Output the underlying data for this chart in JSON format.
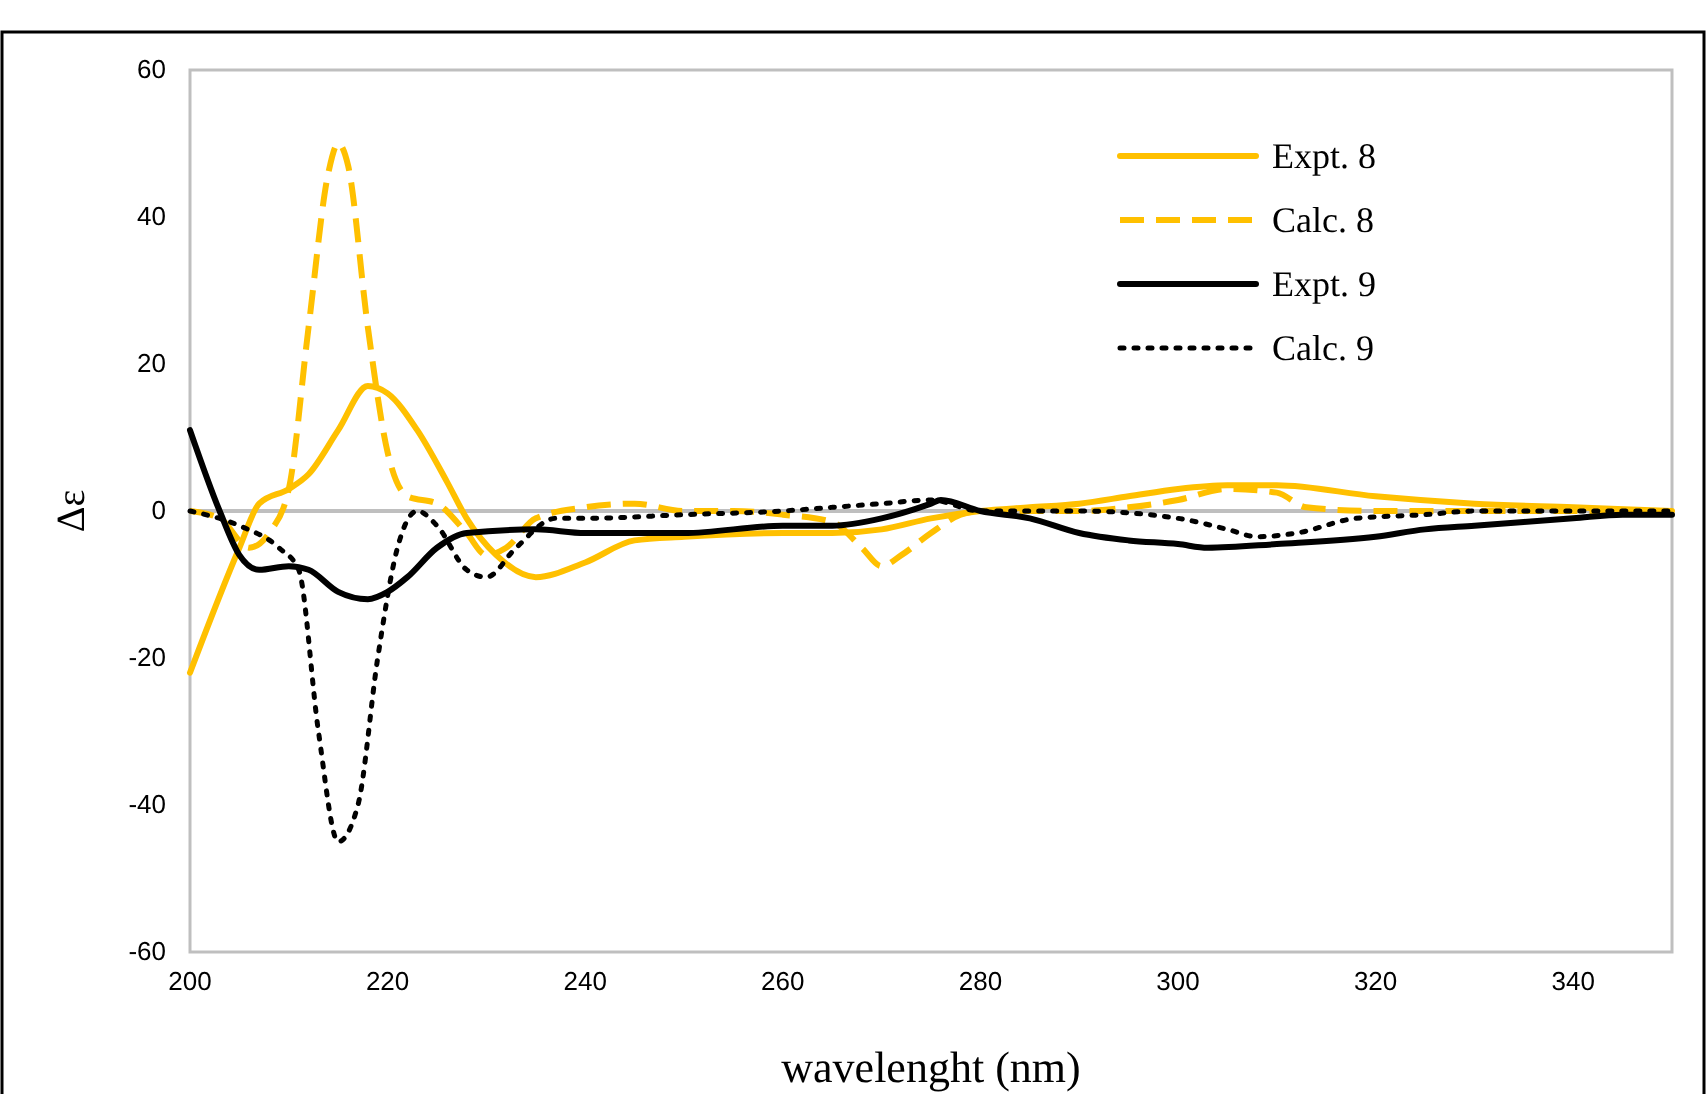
{
  "chart_data": {
    "type": "line",
    "xlabel": "wavelenght (nm)",
    "ylabel": "Δε",
    "xlim": [
      200,
      350
    ],
    "xticks": [
      200,
      220,
      240,
      260,
      280,
      300,
      320,
      340
    ],
    "ylim": [
      -60,
      60
    ],
    "yticks": [
      -60,
      -40,
      -20,
      0,
      20,
      40,
      60
    ],
    "grid": false,
    "legend": "top right",
    "marker": "none",
    "ref_lines": [
      {
        "axis": "y",
        "value": 0,
        "color": "#bfbfbf"
      }
    ],
    "series": [
      {
        "name": "Expt. 8",
        "color": "#ffc000",
        "line_style": "solid",
        "x": [
          200,
          205,
          207,
          210,
          212,
          215,
          218,
          220,
          223,
          226,
          228,
          231,
          235,
          240,
          245,
          250,
          260,
          265,
          270,
          275,
          280,
          285,
          290,
          295,
          300,
          305,
          310,
          320,
          330,
          340,
          350
        ],
        "values": [
          -22,
          -5,
          1,
          3,
          5,
          11,
          17,
          16,
          11,
          4,
          -1,
          -6,
          -9,
          -7,
          -4,
          -3.5,
          -3,
          -3,
          -2.5,
          -1,
          0,
          0.5,
          1,
          2,
          3,
          3.5,
          3.5,
          2,
          1,
          0.5,
          0
        ]
      },
      {
        "name": "Calc. 8",
        "color": "#ffc000",
        "line_style": "dashed",
        "x": [
          200,
          203,
          206,
          208,
          210,
          212,
          214,
          215,
          216,
          218,
          220,
          222,
          225,
          228,
          230,
          232,
          235,
          240,
          245,
          250,
          255,
          260,
          265,
          268,
          270,
          272,
          275,
          278,
          280,
          290,
          295,
          300,
          305,
          310,
          313,
          320,
          350
        ],
        "values": [
          0,
          -1,
          -5,
          -3,
          3,
          25,
          46,
          50,
          47,
          25,
          8,
          2,
          1,
          -3,
          -6,
          -5,
          -1,
          0.5,
          1,
          0,
          0,
          -0.5,
          -1.5,
          -5,
          -7.5,
          -6,
          -3,
          -0.5,
          0,
          0,
          0.5,
          1.5,
          3,
          2.5,
          0.5,
          0,
          0
        ]
      },
      {
        "name": "Expt. 9",
        "color": "#000000",
        "line_style": "solid",
        "x": [
          200,
          203,
          205,
          207,
          210,
          212,
          215,
          218,
          220,
          222,
          225,
          228,
          235,
          240,
          250,
          260,
          265,
          270,
          275,
          276,
          280,
          285,
          290,
          295,
          300,
          303,
          310,
          320,
          325,
          330,
          340,
          345,
          350
        ],
        "values": [
          11,
          0,
          -6,
          -8,
          -7.5,
          -8,
          -11,
          -12,
          -11,
          -9,
          -5,
          -3,
          -2.5,
          -3,
          -3,
          -2,
          -2,
          -1,
          1,
          1.5,
          0,
          -1,
          -3,
          -4,
          -4.5,
          -5,
          -4.5,
          -3.5,
          -2.5,
          -2,
          -1,
          -0.5,
          -0.5
        ]
      },
      {
        "name": "Calc. 9",
        "color": "#000000",
        "line_style": "dotted",
        "x": [
          200,
          205,
          209,
          211,
          213,
          215,
          217,
          219,
          221,
          223,
          225,
          228,
          230,
          233,
          237,
          240,
          250,
          260,
          265,
          270,
          275,
          280,
          290,
          300,
          305,
          308,
          312,
          318,
          325,
          330,
          350
        ],
        "values": [
          0,
          -2,
          -5,
          -8,
          -30,
          -45,
          -40,
          -20,
          -5,
          0,
          -2,
          -8,
          -9,
          -5,
          -1,
          -1,
          -0.5,
          0,
          0.5,
          1,
          1.5,
          0,
          0,
          -1,
          -2.5,
          -3.5,
          -3,
          -1,
          -0.5,
          0,
          0
        ]
      }
    ]
  }
}
